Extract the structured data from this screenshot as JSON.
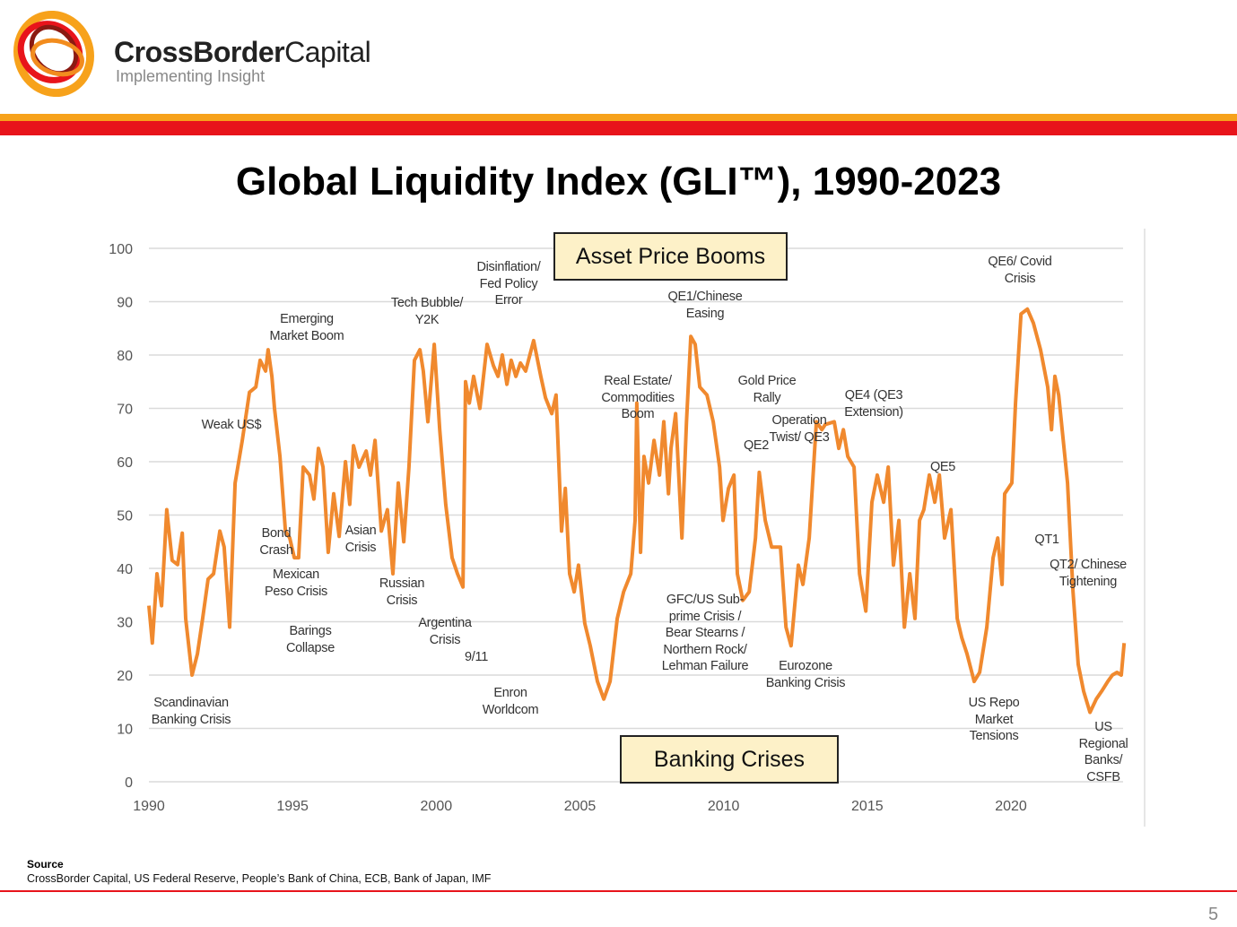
{
  "header": {
    "brand_bold": "CrossBorder",
    "brand_regular": "Capital",
    "tagline": "Implementing Insight"
  },
  "colors": {
    "line": "#f0892e",
    "band_orange": "#f7a21b",
    "band_red": "#e8141b",
    "box_fill": "#fdf1c8"
  },
  "chart_data": {
    "type": "line",
    "title": "Global Liquidity Index (GLI™), 1990-2023",
    "xlabel": "",
    "ylabel": "",
    "xlim": [
      1990,
      2024
    ],
    "ylim": [
      0,
      100
    ],
    "x_ticks": [
      "1990",
      "1995",
      "2000",
      "2005",
      "2010",
      "2015",
      "2020"
    ],
    "y_ticks": [
      "0",
      "10",
      "20",
      "30",
      "40",
      "50",
      "60",
      "70",
      "80",
      "90",
      "100"
    ],
    "grid": true,
    "legend": "none",
    "series": [
      {
        "x": [
          1990.0,
          1990.12,
          1990.28,
          1990.44,
          1990.62,
          1990.81,
          1991.0,
          1991.16,
          1991.28,
          1991.5,
          1991.69,
          1991.87,
          1992.06,
          1992.25,
          1992.47,
          1992.62,
          1992.81,
          1993.0,
          1993.25,
          1993.5,
          1993.72,
          1993.87,
          1994.06,
          1994.15,
          1994.28,
          1994.37,
          1994.56,
          1994.75,
          1994.9,
          1995.06,
          1995.21,
          1995.37,
          1995.59,
          1995.74,
          1995.9,
          1996.06,
          1996.24,
          1996.43,
          1996.62,
          1996.84,
          1996.99,
          1997.12,
          1997.31,
          1997.56,
          1997.71,
          1997.87,
          1998.09,
          1998.3,
          1998.49,
          1998.68,
          1998.87,
          1999.05,
          1999.24,
          1999.43,
          1999.55,
          1999.71,
          1999.93,
          2000.12,
          2000.33,
          2000.55,
          2000.74,
          2000.93,
          2001.02,
          2001.15,
          2001.3,
          2001.52,
          2001.77,
          2001.99,
          2002.15,
          2002.3,
          2002.46,
          2002.61,
          2002.77,
          2002.93,
          2003.11,
          2003.39,
          2003.64,
          2003.8,
          2004.02,
          2004.17,
          2004.36,
          2004.49,
          2004.64,
          2004.8,
          2004.95,
          2005.17,
          2005.36,
          2005.61,
          2005.83,
          2006.05,
          2006.3,
          2006.52,
          2006.77,
          2006.92,
          2006.98,
          2007.11,
          2007.23,
          2007.39,
          2007.58,
          2007.77,
          2007.92,
          2008.08,
          2008.17,
          2008.33,
          2008.55,
          2008.71,
          2008.86,
          2009.01,
          2009.17,
          2009.42,
          2009.64,
          2009.86,
          2009.98,
          2010.17,
          2010.36,
          2010.48,
          2010.67,
          2010.89,
          2011.11,
          2011.24,
          2011.45,
          2011.67,
          2011.98,
          2012.17,
          2012.35,
          2012.6,
          2012.76,
          2012.98,
          2013.23,
          2013.42,
          2013.54,
          2013.85,
          2014.01,
          2014.17,
          2014.32,
          2014.54,
          2014.73,
          2014.95,
          2015.16,
          2015.35,
          2015.57,
          2015.73,
          2015.91,
          2016.1,
          2016.29,
          2016.48,
          2016.66,
          2016.82,
          2016.97,
          2017.16,
          2017.35,
          2017.51,
          2017.69,
          2017.91,
          2018.13,
          2018.29,
          2018.47,
          2018.72,
          2018.91,
          2019.16,
          2019.38,
          2019.54,
          2019.69,
          2019.78,
          2020.03,
          2020.16,
          2020.35,
          2020.57,
          2020.78,
          2021.03,
          2021.28,
          2021.41,
          2021.53,
          2021.66,
          2021.97,
          2022.16,
          2022.34,
          2022.53,
          2022.75,
          2022.97,
          2023.16,
          2023.37,
          2023.53,
          2023.69,
          2023.84,
          2023.94
        ],
        "y": [
          33,
          26,
          39,
          33,
          51,
          41.5,
          40.7,
          46.6,
          30.6,
          20,
          24,
          30.6,
          38,
          39,
          47,
          44,
          29,
          56,
          64,
          73,
          74,
          79,
          77,
          81,
          76,
          70,
          61,
          47,
          45.7,
          42,
          42,
          59,
          57.5,
          53,
          62.5,
          59,
          43,
          54,
          46,
          60,
          52,
          63,
          59,
          62,
          57.5,
          64,
          47,
          51,
          39,
          56,
          45,
          59,
          79,
          81,
          77,
          67.5,
          82,
          66,
          52,
          42,
          39,
          36.5,
          75,
          71,
          76,
          70,
          82,
          78,
          76,
          80,
          74.5,
          79,
          76,
          78.5,
          77,
          82.7,
          76,
          72,
          69,
          72.5,
          47,
          55,
          39,
          35.6,
          40.6,
          29.7,
          25.5,
          18.8,
          15.5,
          18.8,
          30.6,
          35.6,
          39,
          49,
          71,
          43,
          61,
          56,
          64,
          57.5,
          67.5,
          54,
          62.5,
          69,
          45.7,
          67.5,
          83.5,
          82,
          74,
          72.5,
          67.5,
          59,
          49,
          55,
          57.5,
          39,
          34,
          35.6,
          45.7,
          58,
          49,
          44,
          44,
          29,
          25.5,
          40.6,
          37,
          45.7,
          67.5,
          66,
          67,
          67.5,
          62.5,
          66,
          61,
          59,
          39,
          32,
          52.4,
          57.5,
          52.4,
          59,
          40.6,
          49,
          29,
          39,
          30.6,
          49,
          51,
          57.5,
          52.4,
          57.5,
          45.7,
          51,
          30.6,
          27,
          24,
          18.8,
          20.5,
          29,
          42,
          45.7,
          37,
          54,
          56,
          71,
          87.7,
          88.6,
          86,
          81,
          74,
          66,
          76,
          72.5,
          56,
          35.6,
          22,
          17,
          13,
          15.5,
          17,
          18.8,
          20,
          20.5,
          20,
          26
        ]
      }
    ],
    "annotations": [
      "Scandinavian\nBanking Crisis",
      "Weak US$",
      "Emerging\nMarket Boom",
      "Bond\nCrash",
      "Mexican\nPeso Crisis",
      "Barings\nCollapse",
      "Asian\nCrisis",
      "Russian\nCrisis",
      "Tech Bubble/\nY2K",
      "Argentina\nCrisis",
      "9/11",
      "Disinflation/\nFed Policy\nError",
      "Enron\nWorldcom",
      "Real Estate/\nCommodities\nBoom",
      "QE1/Chinese\nEasing",
      "GFC/US Sub-\nprime Crisis /\nBear Stearns /\nNorthern Rock/\nLehman Failure",
      "Gold Price\nRally",
      "QE2",
      "Operation\nTwist/ QE3",
      "Eurozone\nBanking Crisis",
      "QE4 (QE3\nExtension)",
      "QE5",
      "QE6/ Covid\nCrisis",
      "US Repo\nMarket\nTensions",
      "QT1",
      "QT2/ Chinese\nTightening",
      "US\nRegional\nBanks/\nCSFB"
    ],
    "boxes": {
      "top": "Asset Price Booms",
      "bottom": "Banking Crises"
    }
  },
  "footer": {
    "source_heading": "Source",
    "source_text": "CrossBorder Capital, US Federal Reserve, People’s Bank of China, ECB, Bank of Japan, IMF",
    "page_number": "5"
  }
}
